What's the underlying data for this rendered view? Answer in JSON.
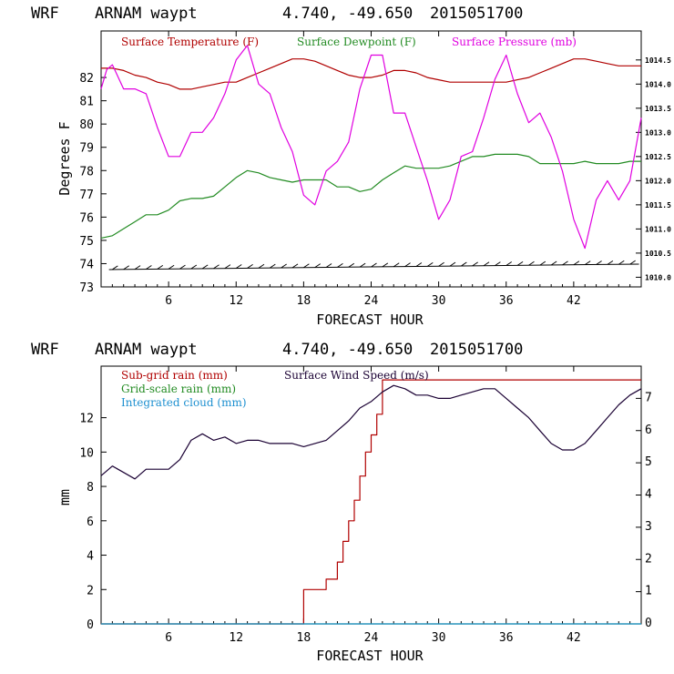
{
  "colors": {
    "temperature": "#b00000",
    "dewpoint": "#228b22",
    "pressure": "#e000e0",
    "subgrid_rain": "#b00000",
    "gridscale_rain": "#228b22",
    "cloud": "#1e90d0",
    "wind": "#1a0033",
    "axis": "#000000"
  },
  "chart_data": [
    {
      "type": "line",
      "header": {
        "model": "WRF",
        "station": "ARNAM waypt",
        "coords": "4.740, -49.650",
        "date": "2015051700"
      },
      "xlabel": "FORECAST HOUR",
      "ylabel": "Degrees F",
      "xlim": [
        0,
        48
      ],
      "ylim": [
        73,
        84
      ],
      "x_ticks": [
        6,
        12,
        18,
        24,
        30,
        36,
        42
      ],
      "y_ticks": [
        73,
        74,
        75,
        76,
        77,
        78,
        79,
        80,
        81,
        82
      ],
      "y2lim": [
        1009.8,
        1015.1
      ],
      "y2_ticks": [
        "1010.0",
        "1010.5",
        "1011.0",
        "1011.5",
        "1012.0",
        "1012.5",
        "1013.0",
        "1013.5",
        "1014.0",
        "1014.5"
      ],
      "series": [
        {
          "name": "Surface Temperature (F)",
          "axis": "left",
          "x": [
            0,
            1,
            2,
            3,
            4,
            5,
            6,
            7,
            8,
            9,
            10,
            11,
            12,
            13,
            14,
            15,
            16,
            17,
            18,
            19,
            20,
            21,
            22,
            23,
            24,
            25,
            26,
            27,
            28,
            29,
            30,
            31,
            32,
            33,
            34,
            35,
            36,
            37,
            38,
            39,
            40,
            41,
            42,
            43,
            44,
            45,
            46,
            47,
            48
          ],
          "values": [
            82.4,
            82.4,
            82.3,
            82.1,
            82.0,
            81.8,
            81.7,
            81.5,
            81.5,
            81.6,
            81.7,
            81.8,
            81.8,
            82.0,
            82.2,
            82.4,
            82.6,
            82.8,
            82.8,
            82.7,
            82.5,
            82.3,
            82.1,
            82.0,
            82.0,
            82.1,
            82.3,
            82.3,
            82.2,
            82.0,
            81.9,
            81.8,
            81.8,
            81.8,
            81.8,
            81.8,
            81.8,
            81.9,
            82.0,
            82.2,
            82.4,
            82.6,
            82.8,
            82.8,
            82.7,
            82.6,
            82.5,
            82.5,
            82.5
          ]
        },
        {
          "name": "Surface Dewpoint (F)",
          "axis": "left",
          "x": [
            0,
            1,
            2,
            3,
            4,
            5,
            6,
            7,
            8,
            9,
            10,
            11,
            12,
            13,
            14,
            15,
            16,
            17,
            18,
            19,
            20,
            21,
            22,
            23,
            24,
            25,
            26,
            27,
            28,
            29,
            30,
            31,
            32,
            33,
            34,
            35,
            36,
            37,
            38,
            39,
            40,
            41,
            42,
            43,
            44,
            45,
            46,
            47,
            48
          ],
          "values": [
            75.1,
            75.2,
            75.5,
            75.8,
            76.1,
            76.1,
            76.3,
            76.7,
            76.8,
            76.8,
            76.9,
            77.3,
            77.7,
            78.0,
            77.9,
            77.7,
            77.6,
            77.5,
            77.6,
            77.6,
            77.6,
            77.3,
            77.3,
            77.1,
            77.2,
            77.6,
            77.9,
            78.2,
            78.1,
            78.1,
            78.1,
            78.2,
            78.4,
            78.6,
            78.6,
            78.7,
            78.7,
            78.7,
            78.6,
            78.3,
            78.3,
            78.3,
            78.3,
            78.4,
            78.3,
            78.3,
            78.3,
            78.4,
            78.4
          ]
        },
        {
          "name": "Surface Pressure (mb)",
          "axis": "right",
          "x": [
            0,
            0.5,
            1,
            2,
            3,
            4,
            5,
            6,
            7,
            8,
            9,
            10,
            11,
            12,
            13,
            14,
            15,
            16,
            17,
            18,
            19,
            20,
            21,
            22,
            23,
            24,
            25,
            26,
            27,
            28,
            29,
            30,
            31,
            32,
            33,
            34,
            35,
            36,
            37,
            38,
            39,
            40,
            41,
            42,
            43,
            44,
            45,
            46,
            47,
            48
          ],
          "values": [
            1013.9,
            1014.3,
            1014.4,
            1013.9,
            1013.9,
            1013.8,
            1013.1,
            1012.5,
            1012.5,
            1013.0,
            1013.0,
            1013.3,
            1013.8,
            1014.5,
            1014.8,
            1014.0,
            1013.8,
            1013.1,
            1012.6,
            1011.7,
            1011.5,
            1012.2,
            1012.4,
            1012.8,
            1013.9,
            1014.6,
            1014.6,
            1013.4,
            1013.4,
            1012.7,
            1012.0,
            1011.2,
            1011.6,
            1012.5,
            1012.6,
            1013.3,
            1014.1,
            1014.6,
            1013.8,
            1013.2,
            1013.4,
            1012.9,
            1012.2,
            1011.2,
            1010.6,
            1011.6,
            1012.0,
            1011.6,
            1012.0,
            1013.3
          ]
        }
      ],
      "wind_barbs": "sparse barbs along the bottom of the panel at every forecast hour"
    },
    {
      "type": "line",
      "header": {
        "model": "WRF",
        "station": "ARNAM waypt",
        "coords": "4.740, -49.650",
        "date": "2015051700"
      },
      "xlabel": "FORECAST HOUR",
      "ylabel": "mm",
      "xlim": [
        0,
        48
      ],
      "ylim": [
        0,
        15
      ],
      "x_ticks": [
        6,
        12,
        18,
        24,
        30,
        36,
        42
      ],
      "y_ticks": [
        0,
        2,
        4,
        6,
        8,
        10,
        12
      ],
      "y2lim": [
        0,
        8
      ],
      "y2_ticks": [
        "0",
        "1",
        "2",
        "3",
        "4",
        "5",
        "6",
        "7"
      ],
      "series": [
        {
          "name": "Sub-grid rain (mm)",
          "axis": "left",
          "x": [
            0,
            18,
            18,
            20,
            20,
            21,
            21,
            21.5,
            21.5,
            22,
            22,
            22.5,
            22.5,
            23,
            23,
            23.5,
            23.5,
            24,
            24,
            24.5,
            24.5,
            25,
            25,
            48
          ],
          "values": [
            0,
            0,
            2,
            2,
            2.6,
            2.6,
            3.6,
            3.6,
            4.8,
            4.8,
            6,
            6,
            7.2,
            7.2,
            8.6,
            8.6,
            10,
            10,
            11,
            11,
            12.2,
            12.2,
            14.2,
            14.2
          ]
        },
        {
          "name": "Grid-scale rain (mm)",
          "axis": "left",
          "x": [
            0,
            48
          ],
          "values": [
            0,
            0
          ]
        },
        {
          "name": "Integrated cloud (mm)",
          "axis": "left",
          "x": [
            0,
            48
          ],
          "values": [
            0,
            0
          ]
        },
        {
          "name": "Surface Wind Speed (m/s)",
          "axis": "right",
          "x": [
            0,
            1,
            2,
            3,
            4,
            5,
            6,
            7,
            8,
            9,
            10,
            11,
            12,
            13,
            14,
            15,
            16,
            17,
            18,
            19,
            20,
            21,
            22,
            23,
            24,
            25,
            26,
            27,
            28,
            29,
            30,
            31,
            32,
            33,
            34,
            35,
            36,
            37,
            38,
            39,
            40,
            41,
            42,
            43,
            44,
            45,
            46,
            47,
            48
          ],
          "values": [
            4.6,
            4.9,
            4.7,
            4.5,
            4.8,
            4.8,
            4.8,
            5.1,
            5.7,
            5.9,
            5.7,
            5.8,
            5.6,
            5.7,
            5.7,
            5.6,
            5.6,
            5.6,
            5.5,
            5.6,
            5.7,
            6.0,
            6.3,
            6.7,
            6.9,
            7.2,
            7.4,
            7.3,
            7.1,
            7.1,
            7.0,
            7.0,
            7.1,
            7.2,
            7.3,
            7.3,
            7.0,
            6.7,
            6.4,
            6.0,
            5.6,
            5.4,
            5.4,
            5.6,
            6.0,
            6.4,
            6.8,
            7.1,
            7.3
          ]
        }
      ]
    }
  ]
}
